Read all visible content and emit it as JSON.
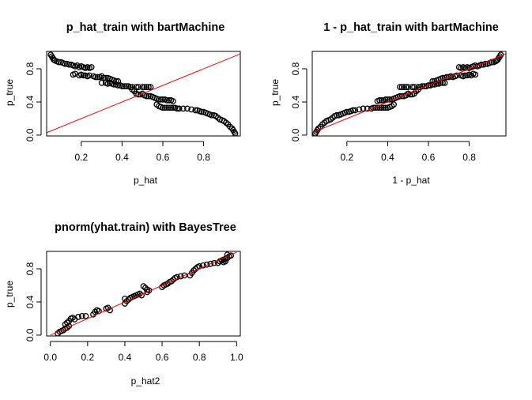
{
  "chart_data": [
    {
      "type": "scatter",
      "title": "p_hat_train with bartMachine",
      "xlabel": "p_hat",
      "ylabel": "p_true",
      "xlim": [
        0.03,
        0.98
      ],
      "ylim": [
        -0.01,
        1.01
      ],
      "xticks": [
        0.2,
        0.4,
        0.6,
        0.8
      ],
      "yticks": [
        0.0,
        0.4,
        0.8
      ],
      "xtick_labels": [
        "0.2",
        "0.4",
        "0.6",
        "0.8"
      ],
      "ytick_labels": [
        "0.0",
        "0.4",
        "0.8"
      ],
      "reference_line": {
        "from": [
          0,
          0
        ],
        "to": [
          1,
          1
        ],
        "color": "#ff0000"
      },
      "points": [
        [
          0.05,
          0.97
        ],
        [
          0.055,
          0.95
        ],
        [
          0.06,
          0.93
        ],
        [
          0.065,
          0.91
        ],
        [
          0.07,
          0.9
        ],
        [
          0.08,
          0.89
        ],
        [
          0.09,
          0.88
        ],
        [
          0.1,
          0.88
        ],
        [
          0.11,
          0.87
        ],
        [
          0.12,
          0.86
        ],
        [
          0.13,
          0.86
        ],
        [
          0.14,
          0.85
        ],
        [
          0.15,
          0.85
        ],
        [
          0.16,
          0.84
        ],
        [
          0.17,
          0.83
        ],
        [
          0.18,
          0.84
        ],
        [
          0.19,
          0.82
        ],
        [
          0.2,
          0.83
        ],
        [
          0.21,
          0.82
        ],
        [
          0.22,
          0.81
        ],
        [
          0.23,
          0.82
        ],
        [
          0.24,
          0.81
        ],
        [
          0.25,
          0.82
        ],
        [
          0.16,
          0.73
        ],
        [
          0.17,
          0.74
        ],
        [
          0.19,
          0.72
        ],
        [
          0.2,
          0.73
        ],
        [
          0.21,
          0.72
        ],
        [
          0.22,
          0.72
        ],
        [
          0.23,
          0.71
        ],
        [
          0.24,
          0.72
        ],
        [
          0.26,
          0.71
        ],
        [
          0.27,
          0.7
        ],
        [
          0.28,
          0.7
        ],
        [
          0.29,
          0.7
        ],
        [
          0.3,
          0.71
        ],
        [
          0.31,
          0.69
        ],
        [
          0.32,
          0.69
        ],
        [
          0.33,
          0.69
        ],
        [
          0.34,
          0.68
        ],
        [
          0.35,
          0.67
        ],
        [
          0.36,
          0.66
        ],
        [
          0.37,
          0.65
        ],
        [
          0.38,
          0.65
        ],
        [
          0.3,
          0.63
        ],
        [
          0.32,
          0.63
        ],
        [
          0.33,
          0.62
        ],
        [
          0.34,
          0.63
        ],
        [
          0.35,
          0.62
        ],
        [
          0.36,
          0.61
        ],
        [
          0.37,
          0.61
        ],
        [
          0.38,
          0.6
        ],
        [
          0.39,
          0.6
        ],
        [
          0.4,
          0.59
        ],
        [
          0.41,
          0.59
        ],
        [
          0.42,
          0.59
        ],
        [
          0.43,
          0.59
        ],
        [
          0.44,
          0.58
        ],
        [
          0.45,
          0.58
        ],
        [
          0.47,
          0.58
        ],
        [
          0.48,
          0.58
        ],
        [
          0.5,
          0.58
        ],
        [
          0.51,
          0.58
        ],
        [
          0.52,
          0.58
        ],
        [
          0.53,
          0.58
        ],
        [
          0.54,
          0.58
        ],
        [
          0.45,
          0.55
        ],
        [
          0.46,
          0.53
        ],
        [
          0.47,
          0.5
        ],
        [
          0.48,
          0.49
        ],
        [
          0.49,
          0.49
        ],
        [
          0.5,
          0.5
        ],
        [
          0.51,
          0.48
        ],
        [
          0.52,
          0.47
        ],
        [
          0.53,
          0.47
        ],
        [
          0.54,
          0.47
        ],
        [
          0.55,
          0.46
        ],
        [
          0.56,
          0.45
        ],
        [
          0.57,
          0.44
        ],
        [
          0.58,
          0.43
        ],
        [
          0.59,
          0.43
        ],
        [
          0.6,
          0.43
        ],
        [
          0.61,
          0.43
        ],
        [
          0.62,
          0.42
        ],
        [
          0.63,
          0.42
        ],
        [
          0.64,
          0.42
        ],
        [
          0.65,
          0.41
        ],
        [
          0.57,
          0.37
        ],
        [
          0.58,
          0.35
        ],
        [
          0.59,
          0.34
        ],
        [
          0.6,
          0.33
        ],
        [
          0.61,
          0.33
        ],
        [
          0.62,
          0.33
        ],
        [
          0.63,
          0.33
        ],
        [
          0.64,
          0.33
        ],
        [
          0.65,
          0.33
        ],
        [
          0.66,
          0.33
        ],
        [
          0.67,
          0.32
        ],
        [
          0.68,
          0.32
        ],
        [
          0.7,
          0.32
        ],
        [
          0.72,
          0.32
        ],
        [
          0.74,
          0.31
        ],
        [
          0.76,
          0.3
        ],
        [
          0.77,
          0.3
        ],
        [
          0.78,
          0.29
        ],
        [
          0.79,
          0.28
        ],
        [
          0.8,
          0.28
        ],
        [
          0.81,
          0.27
        ],
        [
          0.82,
          0.26
        ],
        [
          0.83,
          0.25
        ],
        [
          0.84,
          0.24
        ],
        [
          0.85,
          0.24
        ],
        [
          0.86,
          0.23
        ],
        [
          0.87,
          0.21
        ],
        [
          0.88,
          0.19
        ],
        [
          0.89,
          0.18
        ],
        [
          0.9,
          0.17
        ],
        [
          0.91,
          0.15
        ],
        [
          0.92,
          0.13
        ],
        [
          0.93,
          0.1
        ],
        [
          0.94,
          0.08
        ],
        [
          0.945,
          0.06
        ],
        [
          0.95,
          0.04
        ],
        [
          0.955,
          0.02
        ]
      ]
    },
    {
      "type": "scatter",
      "title": "1 - p_hat_train with bartMachine",
      "xlabel": "1 - p_hat",
      "ylabel": "p_true",
      "xlim": [
        0.03,
        0.98
      ],
      "ylim": [
        -0.01,
        1.01
      ],
      "xticks": [
        0.2,
        0.4,
        0.6,
        0.8
      ],
      "yticks": [
        0.0,
        0.4,
        0.8
      ],
      "xtick_labels": [
        "0.2",
        "0.4",
        "0.6",
        "0.8"
      ],
      "ytick_labels": [
        "0.0",
        "0.4",
        "0.8"
      ],
      "reference_line": {
        "from": [
          0,
          0
        ],
        "to": [
          1,
          1
        ],
        "color": "#ff0000"
      },
      "points": [
        [
          0.045,
          0.02
        ],
        [
          0.05,
          0.04
        ],
        [
          0.055,
          0.06
        ],
        [
          0.06,
          0.08
        ],
        [
          0.07,
          0.1
        ],
        [
          0.08,
          0.13
        ],
        [
          0.09,
          0.15
        ],
        [
          0.1,
          0.17
        ],
        [
          0.11,
          0.18
        ],
        [
          0.12,
          0.19
        ],
        [
          0.13,
          0.21
        ],
        [
          0.14,
          0.23
        ],
        [
          0.15,
          0.24
        ],
        [
          0.16,
          0.24
        ],
        [
          0.17,
          0.25
        ],
        [
          0.18,
          0.26
        ],
        [
          0.19,
          0.27
        ],
        [
          0.2,
          0.28
        ],
        [
          0.21,
          0.28
        ],
        [
          0.22,
          0.29
        ],
        [
          0.23,
          0.3
        ],
        [
          0.24,
          0.3
        ],
        [
          0.26,
          0.31
        ],
        [
          0.28,
          0.32
        ],
        [
          0.3,
          0.32
        ],
        [
          0.32,
          0.32
        ],
        [
          0.33,
          0.33
        ],
        [
          0.34,
          0.33
        ],
        [
          0.35,
          0.33
        ],
        [
          0.36,
          0.33
        ],
        [
          0.37,
          0.33
        ],
        [
          0.38,
          0.33
        ],
        [
          0.39,
          0.33
        ],
        [
          0.4,
          0.33
        ],
        [
          0.41,
          0.34
        ],
        [
          0.42,
          0.35
        ],
        [
          0.43,
          0.37
        ],
        [
          0.35,
          0.41
        ],
        [
          0.36,
          0.42
        ],
        [
          0.37,
          0.42
        ],
        [
          0.38,
          0.42
        ],
        [
          0.39,
          0.43
        ],
        [
          0.4,
          0.43
        ],
        [
          0.41,
          0.43
        ],
        [
          0.42,
          0.43
        ],
        [
          0.43,
          0.44
        ],
        [
          0.44,
          0.45
        ],
        [
          0.45,
          0.46
        ],
        [
          0.46,
          0.47
        ],
        [
          0.47,
          0.47
        ],
        [
          0.48,
          0.47
        ],
        [
          0.49,
          0.48
        ],
        [
          0.5,
          0.5
        ],
        [
          0.51,
          0.49
        ],
        [
          0.52,
          0.49
        ],
        [
          0.53,
          0.5
        ],
        [
          0.54,
          0.53
        ],
        [
          0.55,
          0.55
        ],
        [
          0.46,
          0.58
        ],
        [
          0.47,
          0.58
        ],
        [
          0.48,
          0.58
        ],
        [
          0.49,
          0.58
        ],
        [
          0.5,
          0.58
        ],
        [
          0.52,
          0.58
        ],
        [
          0.53,
          0.58
        ],
        [
          0.55,
          0.58
        ],
        [
          0.56,
          0.58
        ],
        [
          0.57,
          0.59
        ],
        [
          0.58,
          0.59
        ],
        [
          0.59,
          0.59
        ],
        [
          0.6,
          0.6
        ],
        [
          0.61,
          0.6
        ],
        [
          0.62,
          0.61
        ],
        [
          0.63,
          0.61
        ],
        [
          0.64,
          0.62
        ],
        [
          0.65,
          0.62
        ],
        [
          0.66,
          0.63
        ],
        [
          0.67,
          0.63
        ],
        [
          0.68,
          0.63
        ],
        [
          0.62,
          0.65
        ],
        [
          0.63,
          0.65
        ],
        [
          0.64,
          0.66
        ],
        [
          0.65,
          0.67
        ],
        [
          0.66,
          0.68
        ],
        [
          0.67,
          0.69
        ],
        [
          0.68,
          0.69
        ],
        [
          0.69,
          0.7
        ],
        [
          0.7,
          0.7
        ],
        [
          0.71,
          0.71
        ],
        [
          0.72,
          0.7
        ],
        [
          0.73,
          0.71
        ],
        [
          0.74,
          0.72
        ],
        [
          0.76,
          0.72
        ],
        [
          0.77,
          0.71
        ],
        [
          0.78,
          0.72
        ],
        [
          0.79,
          0.72
        ],
        [
          0.8,
          0.73
        ],
        [
          0.81,
          0.72
        ],
        [
          0.82,
          0.74
        ],
        [
          0.83,
          0.73
        ],
        [
          0.75,
          0.82
        ],
        [
          0.76,
          0.81
        ],
        [
          0.77,
          0.82
        ],
        [
          0.78,
          0.81
        ],
        [
          0.79,
          0.82
        ],
        [
          0.8,
          0.81
        ],
        [
          0.81,
          0.82
        ],
        [
          0.82,
          0.83
        ],
        [
          0.83,
          0.84
        ],
        [
          0.84,
          0.83
        ],
        [
          0.85,
          0.84
        ],
        [
          0.86,
          0.85
        ],
        [
          0.87,
          0.85
        ],
        [
          0.88,
          0.86
        ],
        [
          0.89,
          0.86
        ],
        [
          0.9,
          0.87
        ],
        [
          0.91,
          0.88
        ],
        [
          0.92,
          0.88
        ],
        [
          0.93,
          0.89
        ],
        [
          0.935,
          0.9
        ],
        [
          0.94,
          0.91
        ],
        [
          0.945,
          0.93
        ],
        [
          0.95,
          0.95
        ],
        [
          0.955,
          0.97
        ]
      ]
    },
    {
      "type": "scatter",
      "title": "pnorm(yhat.train) with BayesTree",
      "xlabel": "p_hat2",
      "ylabel": "p_true",
      "xlim": [
        -0.02,
        1.02
      ],
      "ylim": [
        -0.01,
        1.01
      ],
      "xticks": [
        0.0,
        0.2,
        0.4,
        0.6,
        0.8,
        1.0
      ],
      "yticks": [
        0.0,
        0.4,
        0.8
      ],
      "xtick_labels": [
        "0.0",
        "0.2",
        "0.4",
        "0.6",
        "0.8",
        "1.0"
      ],
      "ytick_labels": [
        "0.0",
        "0.4",
        "0.8"
      ],
      "reference_line": {
        "from": [
          0,
          0
        ],
        "to": [
          1,
          1
        ],
        "color": "#ff0000"
      },
      "points": [
        [
          0.04,
          0.02
        ],
        [
          0.05,
          0.04
        ],
        [
          0.06,
          0.05
        ],
        [
          0.07,
          0.06
        ],
        [
          0.08,
          0.08
        ],
        [
          0.09,
          0.09
        ],
        [
          0.1,
          0.11
        ],
        [
          0.08,
          0.13
        ],
        [
          0.09,
          0.15
        ],
        [
          0.1,
          0.17
        ],
        [
          0.11,
          0.2
        ],
        [
          0.12,
          0.21
        ],
        [
          0.13,
          0.19
        ],
        [
          0.15,
          0.22
        ],
        [
          0.17,
          0.23
        ],
        [
          0.19,
          0.23
        ],
        [
          0.23,
          0.25
        ],
        [
          0.24,
          0.28
        ],
        [
          0.25,
          0.3
        ],
        [
          0.26,
          0.29
        ],
        [
          0.3,
          0.32
        ],
        [
          0.31,
          0.33
        ],
        [
          0.32,
          0.3
        ],
        [
          0.4,
          0.38
        ],
        [
          0.41,
          0.41
        ],
        [
          0.42,
          0.43
        ],
        [
          0.4,
          0.44
        ],
        [
          0.43,
          0.45
        ],
        [
          0.44,
          0.46
        ],
        [
          0.45,
          0.47
        ],
        [
          0.46,
          0.48
        ],
        [
          0.47,
          0.49
        ],
        [
          0.48,
          0.5
        ],
        [
          0.49,
          0.48
        ],
        [
          0.5,
          0.59
        ],
        [
          0.51,
          0.57
        ],
        [
          0.52,
          0.55
        ],
        [
          0.53,
          0.54
        ],
        [
          0.52,
          0.52
        ],
        [
          0.6,
          0.58
        ],
        [
          0.61,
          0.6
        ],
        [
          0.62,
          0.61
        ],
        [
          0.63,
          0.62
        ],
        [
          0.64,
          0.64
        ],
        [
          0.65,
          0.65
        ],
        [
          0.66,
          0.67
        ],
        [
          0.67,
          0.69
        ],
        [
          0.68,
          0.7
        ],
        [
          0.7,
          0.71
        ],
        [
          0.72,
          0.72
        ],
        [
          0.75,
          0.72
        ],
        [
          0.76,
          0.75
        ],
        [
          0.77,
          0.78
        ],
        [
          0.78,
          0.8
        ],
        [
          0.79,
          0.82
        ],
        [
          0.8,
          0.83
        ],
        [
          0.82,
          0.84
        ],
        [
          0.84,
          0.85
        ],
        [
          0.86,
          0.86
        ],
        [
          0.88,
          0.87
        ],
        [
          0.9,
          0.87
        ],
        [
          0.91,
          0.89
        ],
        [
          0.92,
          0.9
        ],
        [
          0.93,
          0.91
        ],
        [
          0.94,
          0.92
        ],
        [
          0.95,
          0.93
        ],
        [
          0.96,
          0.95
        ],
        [
          0.97,
          0.96
        ],
        [
          0.95,
          0.97
        ],
        [
          0.93,
          0.88
        ],
        [
          0.94,
          0.89
        ]
      ]
    }
  ]
}
